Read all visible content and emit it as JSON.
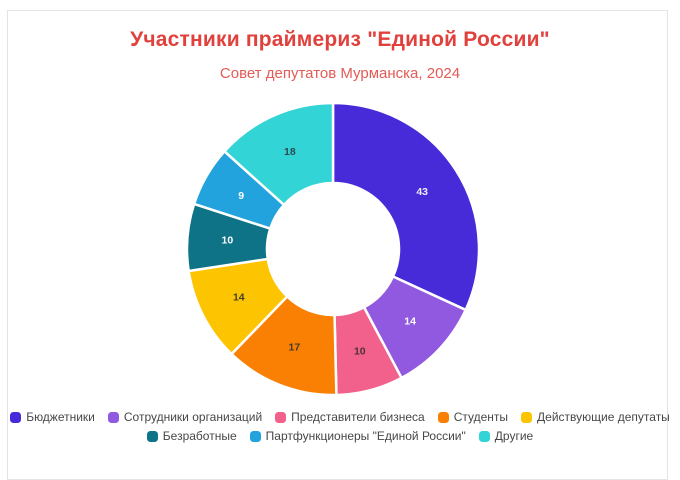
{
  "header": {
    "title": "Участники праймериз \"Единой России\"",
    "subtitle": "Совет депутатов Мурманска, 2024",
    "title_color": "#E0413C",
    "subtitle_color": "#E25B56"
  },
  "chart_data": {
    "type": "pie",
    "donut": true,
    "direction": "clockwise",
    "start_angle_deg": 0,
    "total": 135,
    "slice_border_color": "#ffffff",
    "legend_position": "bottom",
    "legend_rows": [
      5,
      3
    ],
    "legend_text_color": "#474747",
    "title": "Участники праймериз \"Единой России\"",
    "subtitle": "Совет депутатов Мурманска, 2024",
    "series": [
      {
        "name": "Бюджетники",
        "value": 43,
        "color": "#482BD8",
        "label_color": "#EDEDF7"
      },
      {
        "name": "Сотрудники организаций",
        "value": 14,
        "color": "#9159DF",
        "label_color": "#FFFFFF"
      },
      {
        "name": "Представители бизнеса",
        "value": 10,
        "color": "#F2618B",
        "label_color": "#4A3239"
      },
      {
        "name": "Студенты",
        "value": 17,
        "color": "#F98003",
        "label_color": "#433A2E"
      },
      {
        "name": "Действующие депутаты",
        "value": 14,
        "color": "#FDC402",
        "label_color": "#46402A"
      },
      {
        "name": "Безработные",
        "value": 10,
        "color": "#0E7386",
        "label_color": "#FFFFFF"
      },
      {
        "name": "Партфункционеры \"Единой России\"",
        "value": 9,
        "color": "#23A3DD",
        "label_color": "#FFFFFF"
      },
      {
        "name": "Другие",
        "value": 18,
        "color": "#33D4D6",
        "label_color": "#2E4A4D"
      }
    ]
  }
}
